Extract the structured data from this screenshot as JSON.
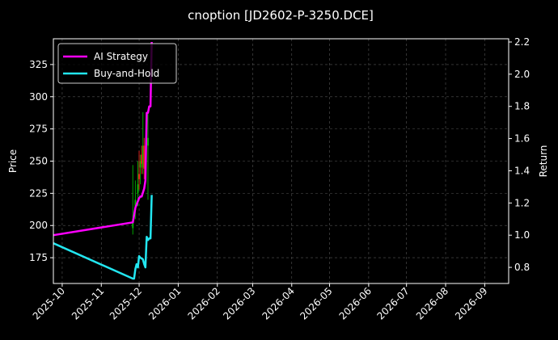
{
  "chart_data": {
    "type": "line",
    "title": "cnoption [JD2602-P-3250.DCE]",
    "ylabel": "Price",
    "y2label": "Return",
    "x_ticks": [
      "2025-10",
      "2025-11",
      "2025-12",
      "2026-01",
      "2026-02",
      "2026-03",
      "2026-04",
      "2026-05",
      "2026-06",
      "2026-07",
      "2026-08",
      "2026-09"
    ],
    "xlim": [
      "2025-09-24",
      "2026-09-20"
    ],
    "ylim": [
      155,
      345
    ],
    "y_ticks": [
      175,
      200,
      225,
      250,
      275,
      300,
      325
    ],
    "y2lim": [
      0.7,
      2.22
    ],
    "y2_ticks": [
      "0.8",
      "1.0",
      "1.2",
      "1.4",
      "1.6",
      "1.8",
      "2.0",
      "2.2"
    ],
    "grid": true,
    "legend_position": "top-left",
    "series": [
      {
        "name": "AI Strategy",
        "axis": "right",
        "color": "#ff00ff",
        "x": [
          "2025-09-24",
          "2025-11-26",
          "2025-11-28",
          "2025-12-01",
          "2025-12-02",
          "2025-12-03",
          "2025-12-05",
          "2025-12-06",
          "2025-12-07",
          "2025-12-08",
          "2025-12-09",
          "2025-12-10",
          "2025-12-11"
        ],
        "y": [
          1.0,
          1.08,
          1.17,
          1.23,
          1.24,
          1.24,
          1.29,
          1.34,
          1.76,
          1.76,
          1.8,
          1.8,
          2.2
        ]
      },
      {
        "name": "Buy-and-Hold",
        "axis": "right",
        "color": "#22e6f0",
        "x": [
          "2025-09-24",
          "2025-11-26",
          "2025-11-27",
          "2025-11-28",
          "2025-11-29",
          "2025-11-30",
          "2025-12-01",
          "2025-12-02",
          "2025-12-04",
          "2025-12-05",
          "2025-12-06",
          "2025-12-07",
          "2025-12-08",
          "2025-12-09",
          "2025-12-10",
          "2025-12-11"
        ],
        "y": [
          0.95,
          0.73,
          0.73,
          0.79,
          0.82,
          0.8,
          0.87,
          0.86,
          0.85,
          0.82,
          0.8,
          0.99,
          0.97,
          0.98,
          0.98,
          1.25
        ]
      }
    ],
    "candlesticks": [
      {
        "date": "2025-11-26",
        "open": 198,
        "high": 247,
        "low": 193,
        "close": 205,
        "color": "#00c000"
      },
      {
        "date": "2025-11-28",
        "open": 212,
        "high": 235,
        "low": 205,
        "close": 220,
        "color": "#00c000"
      },
      {
        "date": "2025-11-30",
        "open": 225,
        "high": 250,
        "low": 215,
        "close": 232,
        "color": "#00c000"
      },
      {
        "date": "2025-12-01",
        "open": 240,
        "high": 258,
        "low": 228,
        "close": 236,
        "color": "#ff2020"
      },
      {
        "date": "2025-12-02",
        "open": 245,
        "high": 255,
        "low": 232,
        "close": 250,
        "color": "#00c000"
      },
      {
        "date": "2025-12-03",
        "open": 255,
        "high": 262,
        "low": 240,
        "close": 248,
        "color": "#ff2020"
      },
      {
        "date": "2025-12-04",
        "open": 245,
        "high": 288,
        "low": 240,
        "close": 262,
        "color": "#00c000"
      },
      {
        "date": "2025-12-05",
        "open": 262,
        "high": 268,
        "low": 236,
        "close": 244,
        "color": "#ff2020"
      },
      {
        "date": "2025-12-08",
        "open": 262,
        "high": 290,
        "low": 220,
        "close": 268,
        "color": "#00c000"
      }
    ]
  }
}
